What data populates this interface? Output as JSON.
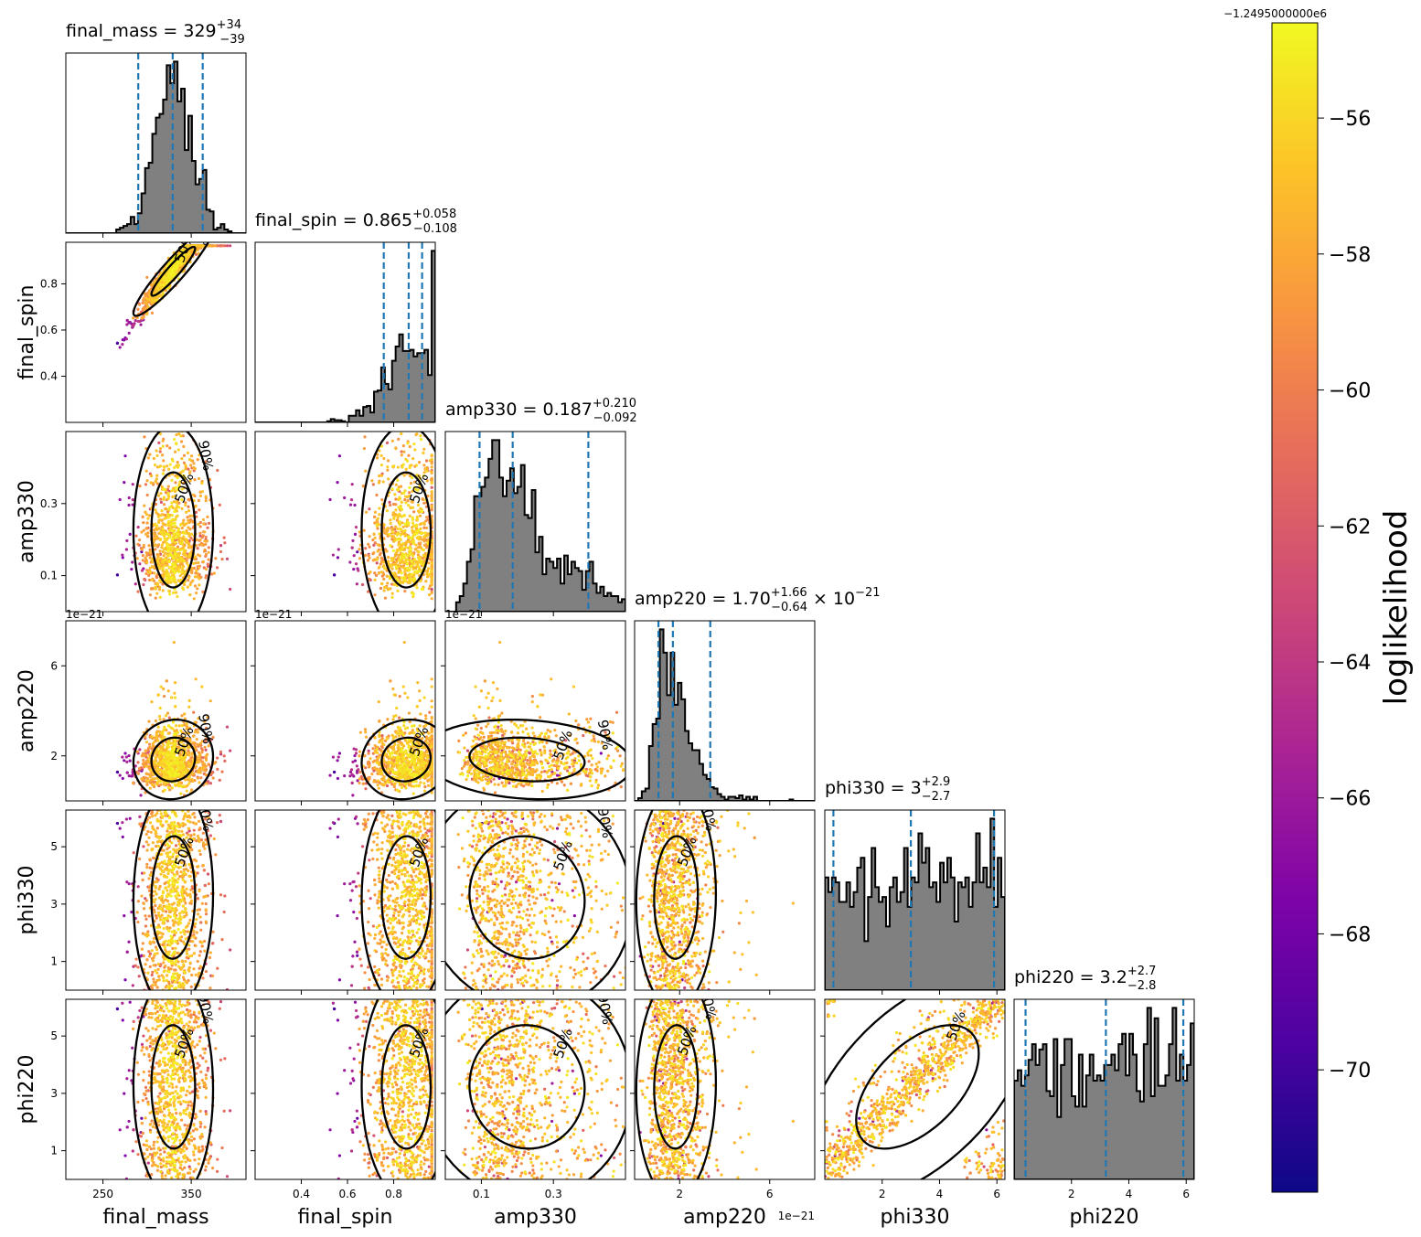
{
  "chart_data": {
    "type": "corner",
    "parameters": [
      "final_mass",
      "final_spin",
      "amp330",
      "amp220",
      "phi330",
      "phi220"
    ],
    "axis_labels": [
      "final_mass",
      "final_spin",
      "amp330",
      "amp220",
      "phi330",
      "phi220"
    ],
    "ranges": {
      "final_mass": [
        208,
        412
      ],
      "final_spin": [
        0.2,
        0.98
      ],
      "amp330": [
        0.0,
        0.5
      ],
      "amp220": [
        0.0,
        8.0
      ],
      "phi330": [
        0.0,
        6.28
      ],
      "phi220": [
        0.0,
        6.28
      ]
    },
    "ticks": {
      "final_mass": [
        {
          "v": 250,
          "label": "250"
        },
        {
          "v": 350,
          "label": "350"
        }
      ],
      "final_spin": [
        {
          "v": 0.4,
          "label": "0.4"
        },
        {
          "v": 0.6,
          "label": "0.6"
        },
        {
          "v": 0.8,
          "label": "0.8"
        }
      ],
      "amp330": [
        {
          "v": 0.1,
          "label": "0.1"
        },
        {
          "v": 0.3,
          "label": "0.3"
        }
      ],
      "amp220": [
        {
          "v": 2,
          "label": "2"
        },
        {
          "v": 6,
          "label": "6"
        }
      ],
      "phi330": [
        {
          "v": 1,
          "label": "1"
        },
        {
          "v": 3,
          "label": "3"
        },
        {
          "v": 5,
          "label": "5"
        }
      ],
      "phi220": [
        {
          "v": 1,
          "label": "1"
        },
        {
          "v": 3,
          "label": "3"
        },
        {
          "v": 5,
          "label": "5"
        }
      ]
    },
    "ticks_x": {
      "phi330": [
        {
          "v": 2,
          "label": "2"
        },
        {
          "v": 4,
          "label": "4"
        },
        {
          "v": 6,
          "label": "6"
        }
      ],
      "phi220": [
        {
          "v": 2,
          "label": "2"
        },
        {
          "v": 4,
          "label": "4"
        },
        {
          "v": 6,
          "label": "6"
        }
      ]
    },
    "offset_label": "1e−21",
    "marginals": [
      {
        "param": "final_mass",
        "title_main": "final_mass = 329",
        "sup": "+34",
        "sub": "−39",
        "suffix": "",
        "quantiles": [
          290,
          329,
          363
        ]
      },
      {
        "param": "final_spin",
        "title_main": "final_spin = 0.865",
        "sup": "+0.058",
        "sub": "−0.108",
        "suffix": "",
        "quantiles": [
          0.757,
          0.865,
          0.923
        ]
      },
      {
        "param": "amp330",
        "title_main": "amp330 = 0.187",
        "sup": "+0.210",
        "sub": "−0.092",
        "suffix": "",
        "quantiles": [
          0.095,
          0.187,
          0.397
        ]
      },
      {
        "param": "amp220",
        "title_main": "amp220 = 1.70",
        "sup": "+1.66",
        "sub": "−0.64",
        "suffix": "× 10",
        "suffix_sup": "−21",
        "quantiles": [
          1.06,
          1.7,
          3.36
        ]
      },
      {
        "param": "phi330",
        "title_main": "phi330 = 3",
        "sup": "+2.9",
        "sub": "−2.7",
        "suffix": "",
        "quantiles": [
          0.3,
          3.0,
          5.9
        ]
      },
      {
        "param": "phi220",
        "title_main": "phi220 = 3.2",
        "sup": "+2.7",
        "sub": "−2.8",
        "suffix": "",
        "quantiles": [
          0.4,
          3.2,
          5.9
        ]
      }
    ],
    "contour_levels": [
      "50%",
      "90%"
    ],
    "colorbar": {
      "label": "loglikelihood",
      "colormap": "plasma",
      "range": [
        -71.8,
        -54.6
      ],
      "ticks": [
        {
          "v": -56,
          "label": "−56"
        },
        {
          "v": -58,
          "label": "−58"
        },
        {
          "v": -60,
          "label": "−60"
        },
        {
          "v": -62,
          "label": "−62"
        },
        {
          "v": -64,
          "label": "−64"
        },
        {
          "v": -66,
          "label": "−66"
        },
        {
          "v": -68,
          "label": "−68"
        },
        {
          "v": -70,
          "label": "−70"
        }
      ],
      "offset_label": "−1.2495000000e6"
    },
    "histogram_fill": "#808080",
    "quantile_color": "#1f77b4"
  }
}
